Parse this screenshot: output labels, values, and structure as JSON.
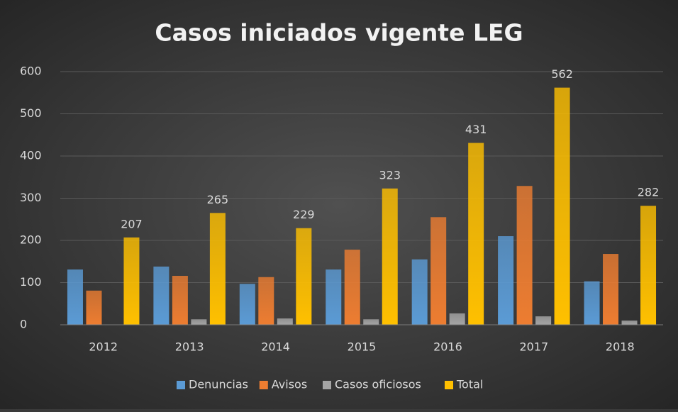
{
  "chart_data": {
    "type": "bar",
    "title": "Casos iniciados vigente LEG",
    "categories": [
      "2012",
      "2013",
      "2014",
      "2015",
      "2016",
      "2017",
      "2018"
    ],
    "series": [
      {
        "name": "Denuncias",
        "color": "#5b9bd5",
        "values": [
          131,
          138,
          97,
          131,
          155,
          210,
          103
        ]
      },
      {
        "name": "Avisos",
        "color": "#ed7d31",
        "values": [
          81,
          116,
          113,
          178,
          255,
          329,
          168
        ]
      },
      {
        "name": "Casos oficiosos",
        "color": "#a5a5a5",
        "values": [
          0,
          13,
          15,
          13,
          27,
          20,
          10
        ]
      },
      {
        "name": "Total",
        "color": "#ffc000",
        "values": [
          207,
          265,
          229,
          323,
          431,
          562,
          282
        ],
        "labels": true
      }
    ],
    "ylim": [
      0,
      600
    ],
    "yticks": [
      0,
      100,
      200,
      300,
      400,
      500,
      600
    ],
    "grid": true,
    "legend": "bottom"
  }
}
